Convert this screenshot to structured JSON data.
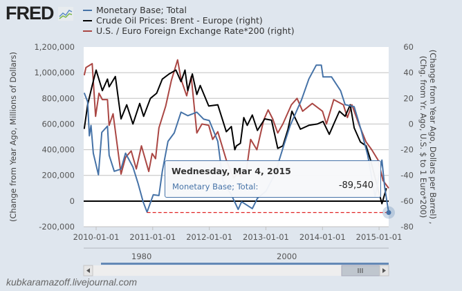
{
  "logo": {
    "text": "FRED"
  },
  "legend": [
    {
      "label": "Monetary Base; Total",
      "color": "#4572a7"
    },
    {
      "label": "Crude Oil Prices: Brent - Europe (right)",
      "color": "#000000"
    },
    {
      "label": "U.S. / Euro Foreign Exchange Rate*200 (right)",
      "color": "#aa4643"
    }
  ],
  "tooltip": {
    "date": "Wednesday, Mar 4, 2015",
    "label": "Monetary Base; Total:",
    "value": "-89,540"
  },
  "navigator": {
    "labels": [
      "1980",
      "2000"
    ]
  },
  "watermark": "kubkaramazoff.livejournal.com",
  "chart_data": {
    "type": "line",
    "title": "",
    "xlabel": "",
    "ylabel": "(Change from Year Ago, Millions of Dollars)",
    "ylabel_right": [
      "(Change from Year Ago, Dollars per Barrel) ,",
      "(Chg. from Yr. Ago, U.S. $ to 1 Euro*200)"
    ],
    "xlim": [
      2009.78,
      2015.17
    ],
    "ylim": [
      -200000,
      1200000
    ],
    "ylim_right": [
      -80,
      60
    ],
    "x_ticks": [
      {
        "v": 2010,
        "label": "2010-01-01"
      },
      {
        "v": 2011,
        "label": "2011-01-01"
      },
      {
        "v": 2012,
        "label": "2012-01-01"
      },
      {
        "v": 2013,
        "label": "2013-01-01"
      },
      {
        "v": 2014,
        "label": "2014-01-01"
      },
      {
        "v": 2015,
        "label": "2015-01-01"
      }
    ],
    "y_ticks": [
      {
        "v": -200000,
        "label": "-200,000"
      },
      {
        "v": 0,
        "label": "0"
      },
      {
        "v": 200000,
        "label": "200,000"
      },
      {
        "v": 400000,
        "label": "400,000"
      },
      {
        "v": 600000,
        "label": "600,000"
      },
      {
        "v": 800000,
        "label": "800,000"
      },
      {
        "v": 1000000,
        "label": "1,000,000"
      },
      {
        "v": 1200000,
        "label": "1,200,000"
      }
    ],
    "y_ticks_right": [
      {
        "v": -80,
        "label": "-80"
      },
      {
        "v": -60,
        "label": "-60"
      },
      {
        "v": -40,
        "label": "-40"
      },
      {
        "v": -20,
        "label": "-20"
      },
      {
        "v": 0,
        "label": "0"
      },
      {
        "v": 20,
        "label": "20"
      },
      {
        "v": 40,
        "label": "40"
      },
      {
        "v": 60,
        "label": "60"
      }
    ],
    "grid": true,
    "legend_position": "top",
    "highlight": {
      "x": 2015.17,
      "y": -89540,
      "min_line_from": 2010.9
    },
    "series": [
      {
        "name": "Monetary Base; Total",
        "axis": "left",
        "color": "#4572a7",
        "points": [
          [
            2009.79,
            843000
          ],
          [
            2009.85,
            773000
          ],
          [
            2009.88,
            508000
          ],
          [
            2009.91,
            589000
          ],
          [
            2009.95,
            373000
          ],
          [
            2010.04,
            205000
          ],
          [
            2010.1,
            535000
          ],
          [
            2010.2,
            584000
          ],
          [
            2010.23,
            357000
          ],
          [
            2010.32,
            232000
          ],
          [
            2010.44,
            249000
          ],
          [
            2010.52,
            373000
          ],
          [
            2010.65,
            265000
          ],
          [
            2010.74,
            140000
          ],
          [
            2010.83,
            -5000
          ],
          [
            2010.9,
            -86000
          ],
          [
            2011.01,
            49000
          ],
          [
            2011.11,
            43000
          ],
          [
            2011.17,
            232000
          ],
          [
            2011.27,
            465000
          ],
          [
            2011.38,
            530000
          ],
          [
            2011.5,
            692000
          ],
          [
            2011.62,
            665000
          ],
          [
            2011.78,
            692000
          ],
          [
            2011.9,
            638000
          ],
          [
            2012.0,
            627000
          ],
          [
            2012.15,
            465000
          ],
          [
            2012.24,
            157000
          ],
          [
            2012.39,
            49000
          ],
          [
            2012.51,
            -65000
          ],
          [
            2012.57,
            -5000
          ],
          [
            2012.76,
            -59000
          ],
          [
            2012.85,
            22000
          ],
          [
            2013.0,
            76000
          ],
          [
            2013.16,
            211000
          ],
          [
            2013.3,
            411000
          ],
          [
            2013.43,
            589000
          ],
          [
            2013.63,
            789000
          ],
          [
            2013.76,
            951000
          ],
          [
            2013.89,
            1059000
          ],
          [
            2013.98,
            1059000
          ],
          [
            2014.01,
            967000
          ],
          [
            2014.16,
            967000
          ],
          [
            2014.32,
            859000
          ],
          [
            2014.4,
            751000
          ],
          [
            2014.56,
            735000
          ],
          [
            2014.68,
            557000
          ],
          [
            2014.8,
            357000
          ],
          [
            2014.93,
            32000
          ],
          [
            2015.05,
            319000
          ],
          [
            2015.1,
            103000
          ],
          [
            2015.17,
            -89540
          ]
        ]
      },
      {
        "name": "Crude Oil Prices: Brent - Europe (right)",
        "axis": "right",
        "color": "#000000",
        "points": [
          [
            2009.79,
            -3.8
          ],
          [
            2009.85,
            15
          ],
          [
            2009.93,
            30
          ],
          [
            2010.0,
            42
          ],
          [
            2010.11,
            26
          ],
          [
            2010.2,
            35
          ],
          [
            2010.23,
            29
          ],
          [
            2010.34,
            37
          ],
          [
            2010.44,
            4
          ],
          [
            2010.54,
            15
          ],
          [
            2010.65,
            0
          ],
          [
            2010.77,
            16
          ],
          [
            2010.84,
            6
          ],
          [
            2010.96,
            20
          ],
          [
            2011.07,
            24
          ],
          [
            2011.17,
            35
          ],
          [
            2011.29,
            39
          ],
          [
            2011.41,
            42
          ],
          [
            2011.5,
            33
          ],
          [
            2011.57,
            42
          ],
          [
            2011.62,
            26
          ],
          [
            2011.7,
            39
          ],
          [
            2011.78,
            23
          ],
          [
            2011.84,
            30
          ],
          [
            2011.99,
            14
          ],
          [
            2012.15,
            15
          ],
          [
            2012.3,
            -6
          ],
          [
            2012.39,
            -2
          ],
          [
            2012.45,
            -20
          ],
          [
            2012.48,
            -17
          ],
          [
            2012.55,
            -15
          ],
          [
            2012.61,
            5
          ],
          [
            2012.67,
            -1
          ],
          [
            2012.76,
            7
          ],
          [
            2012.85,
            -5
          ],
          [
            2012.98,
            4
          ],
          [
            2013.1,
            3
          ],
          [
            2013.21,
            -19
          ],
          [
            2013.3,
            -17
          ],
          [
            2013.39,
            -4
          ],
          [
            2013.46,
            10
          ],
          [
            2013.61,
            -4
          ],
          [
            2013.76,
            -1
          ],
          [
            2013.91,
            0
          ],
          [
            2014.01,
            2
          ],
          [
            2014.12,
            -8
          ],
          [
            2014.2,
            0
          ],
          [
            2014.3,
            10
          ],
          [
            2014.4,
            6
          ],
          [
            2014.49,
            15
          ],
          [
            2014.56,
            -3
          ],
          [
            2014.67,
            -14
          ],
          [
            2014.77,
            -17
          ],
          [
            2014.85,
            -28
          ],
          [
            2014.93,
            -42
          ],
          [
            2015.05,
            -62
          ],
          [
            2015.13,
            -50
          ]
        ]
      },
      {
        "name": "U.S. / Euro Foreign Exchange Rate*200 (right)",
        "axis": "right",
        "color": "#aa4643",
        "points": [
          [
            2009.79,
            38
          ],
          [
            2009.82,
            44
          ],
          [
            2009.93,
            47
          ],
          [
            2009.99,
            6
          ],
          [
            2010.05,
            24
          ],
          [
            2010.11,
            19
          ],
          [
            2010.2,
            19
          ],
          [
            2010.23,
            -1
          ],
          [
            2010.3,
            8
          ],
          [
            2010.44,
            -39
          ],
          [
            2010.52,
            -26
          ],
          [
            2010.62,
            -21
          ],
          [
            2010.71,
            -35
          ],
          [
            2010.8,
            -17
          ],
          [
            2010.93,
            -37
          ],
          [
            2010.99,
            -23
          ],
          [
            2011.05,
            -27
          ],
          [
            2011.11,
            -3
          ],
          [
            2011.23,
            14
          ],
          [
            2011.33,
            34
          ],
          [
            2011.44,
            50
          ],
          [
            2011.5,
            35
          ],
          [
            2011.6,
            22
          ],
          [
            2011.68,
            37
          ],
          [
            2011.78,
            -7
          ],
          [
            2011.87,
            0
          ],
          [
            2011.99,
            -1
          ],
          [
            2012.06,
            -12
          ],
          [
            2012.15,
            -6
          ],
          [
            2012.3,
            -28
          ],
          [
            2012.43,
            -42
          ],
          [
            2012.51,
            -38
          ],
          [
            2012.55,
            -41
          ],
          [
            2012.66,
            -35
          ],
          [
            2012.73,
            -12
          ],
          [
            2012.84,
            -20
          ],
          [
            2012.96,
            3
          ],
          [
            2013.04,
            11
          ],
          [
            2013.12,
            4
          ],
          [
            2013.21,
            -7
          ],
          [
            2013.3,
            0
          ],
          [
            2013.45,
            15
          ],
          [
            2013.55,
            20
          ],
          [
            2013.65,
            10
          ],
          [
            2013.82,
            16
          ],
          [
            2014.0,
            10
          ],
          [
            2014.07,
            0
          ],
          [
            2014.2,
            19
          ],
          [
            2014.37,
            15
          ],
          [
            2014.44,
            5
          ],
          [
            2014.52,
            15
          ],
          [
            2014.65,
            -1
          ],
          [
            2014.77,
            -14
          ],
          [
            2014.87,
            -20
          ],
          [
            2014.98,
            -28
          ],
          [
            2015.07,
            -44
          ],
          [
            2015.17,
            -50
          ]
        ]
      }
    ]
  }
}
